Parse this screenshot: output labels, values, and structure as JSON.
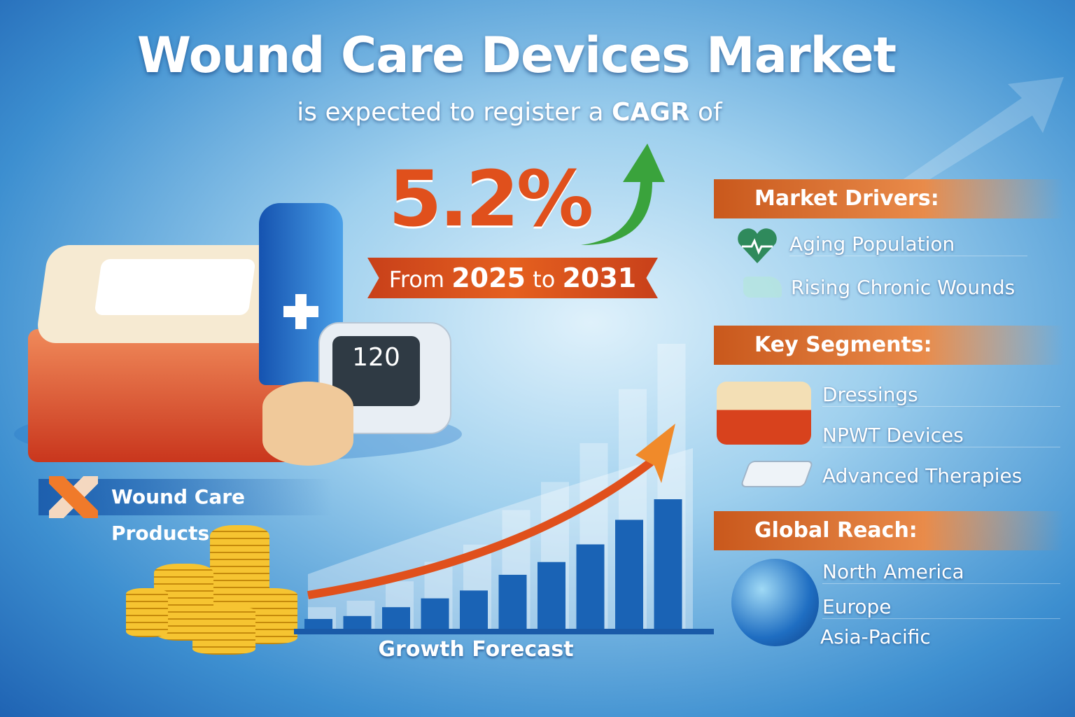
{
  "title": "Wound Care Devices Market",
  "subtitle": {
    "pre": "is expected to register a",
    "bold": "CAGR",
    "post": "of"
  },
  "cagr": "5.2%",
  "range": {
    "from_label": "From",
    "start": "2025",
    "to_label": "to",
    "end": "2031"
  },
  "device_display": "120",
  "products_label": "Wound Care Products",
  "growth_label": "Growth Forecast",
  "chart_data": {
    "type": "bar",
    "relative_bar_levels": [
      1,
      1.3,
      2.2,
      3.1,
      3.9,
      5.5,
      6.8,
      8.6,
      11.1,
      13.2
    ],
    "trend": "rising"
  },
  "drivers": {
    "title": "Market Drivers:",
    "items": [
      {
        "label": "Aging Population",
        "icon": "heart-pulse-icon"
      },
      {
        "label": "Rising Chronic Wounds",
        "icon": "map-icon"
      }
    ]
  },
  "segments": {
    "title": "Key Segments:",
    "items": [
      {
        "label": "Dressings"
      },
      {
        "label": "NPWT Devices"
      },
      {
        "label": "Advanced Therapies"
      }
    ]
  },
  "reach": {
    "title": "Global Reach:",
    "items": [
      {
        "label": "North America"
      },
      {
        "label": "Europe"
      },
      {
        "label": "Asia-Pacific"
      }
    ]
  },
  "colors": {
    "accent": "#e0501c",
    "arrow_green": "#3aa33c",
    "bar_blue": "#1a63b5",
    "header_orange": "#d9691f"
  }
}
